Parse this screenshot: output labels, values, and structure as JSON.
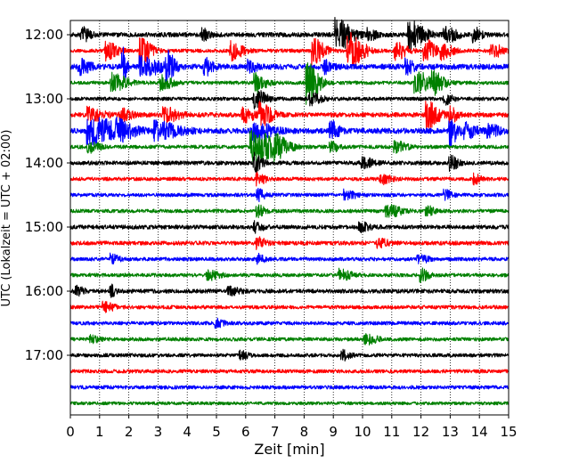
{
  "chart_data": {
    "type": "line",
    "title": "",
    "xlabel": "Zeit  [min]",
    "ylabel": "UTC (Lokalzeit = UTC + 02:00)",
    "xlim": [
      0,
      15
    ],
    "x_ticks": [
      "0",
      "1",
      "2",
      "3",
      "4",
      "5",
      "6",
      "7",
      "8",
      "9",
      "10",
      "11",
      "12",
      "13",
      "14",
      "15"
    ],
    "y_tick_labels": [
      "12:00",
      "13:00",
      "14:00",
      "15:00",
      "16:00",
      "17:00"
    ],
    "grid": "vertical dotted at each minute",
    "trace_colors": [
      "#000000",
      "#ff0000",
      "#0000ff",
      "#008000"
    ],
    "traces": [
      {
        "time": "12:00",
        "color": "#000000",
        "amplitude": 0.5,
        "events": [
          [
            9.1,
            3.5,
            0.4
          ],
          [
            11.6,
            3,
            0.4
          ],
          [
            12.8,
            2,
            0.3
          ],
          [
            0.4,
            1.5,
            0.2
          ],
          [
            4.5,
            1.2,
            0.2
          ],
          [
            10.2,
            1.2,
            0.2
          ],
          [
            13.8,
            1.5,
            0.2
          ]
        ]
      },
      {
        "time": "12:15",
        "color": "#ff0000",
        "amplitude": 0.4,
        "events": [
          [
            1.2,
            2,
            0.3
          ],
          [
            2.4,
            2.5,
            0.3
          ],
          [
            5.5,
            2,
            0.3
          ],
          [
            8.3,
            3,
            0.3
          ],
          [
            9.5,
            4,
            0.4
          ],
          [
            11.1,
            2,
            0.3
          ],
          [
            12.1,
            2.5,
            0.3
          ],
          [
            12.7,
            1.5,
            0.3
          ],
          [
            14.4,
            1.5,
            0.3
          ]
        ]
      },
      {
        "time": "12:30",
        "color": "#0000ff",
        "amplitude": 0.6,
        "events": [
          [
            0.3,
            1.5,
            0.3
          ],
          [
            1.8,
            4,
            0.1
          ],
          [
            2.4,
            2.2,
            0.5
          ],
          [
            3.3,
            3,
            0.2
          ],
          [
            4.6,
            1.8,
            0.2
          ],
          [
            6.1,
            1.2,
            0.2
          ],
          [
            8.7,
            1.2,
            0.2
          ],
          [
            11.5,
            1.5,
            0.2
          ]
        ]
      },
      {
        "time": "12:45",
        "color": "#008000",
        "amplitude": 0.4,
        "events": [
          [
            1.4,
            2,
            0.4
          ],
          [
            3.1,
            1.5,
            0.3
          ],
          [
            6.3,
            2,
            0.3
          ],
          [
            8.1,
            4.5,
            0.3
          ],
          [
            11.8,
            2.5,
            0.4
          ],
          [
            12.4,
            2,
            0.3
          ]
        ]
      },
      {
        "time": "13:00",
        "color": "#000000",
        "amplitude": 0.4,
        "events": [
          [
            6.3,
            2,
            0.3
          ],
          [
            8.2,
            1.2,
            0.3
          ],
          [
            12.8,
            1.2,
            0.2
          ]
        ]
      },
      {
        "time": "13:15",
        "color": "#ff0000",
        "amplitude": 0.5,
        "events": [
          [
            0.6,
            1.5,
            0.4
          ],
          [
            1.7,
            1.2,
            0.3
          ],
          [
            3.2,
            1.5,
            0.4
          ],
          [
            5.9,
            1.5,
            0.3
          ],
          [
            6.5,
            2.5,
            0.3
          ],
          [
            12.2,
            3,
            0.3
          ],
          [
            13.0,
            1.5,
            0.2
          ]
        ]
      },
      {
        "time": "13:30",
        "color": "#0000ff",
        "amplitude": 0.6,
        "events": [
          [
            0.6,
            3,
            0.8
          ],
          [
            1.6,
            1.5,
            0.4
          ],
          [
            2.9,
            1.8,
            0.6
          ],
          [
            6.2,
            2,
            0.5
          ],
          [
            8.9,
            2,
            0.2
          ],
          [
            13.0,
            3,
            0.2
          ],
          [
            13.5,
            1.5,
            0.3
          ],
          [
            14.3,
            1.2,
            0.3
          ]
        ]
      },
      {
        "time": "13:45",
        "color": "#008000",
        "amplitude": 0.4,
        "events": [
          [
            0.6,
            1.2,
            0.3
          ],
          [
            6.2,
            3.5,
            0.7
          ],
          [
            7.0,
            1.2,
            0.3
          ],
          [
            8.9,
            1.2,
            0.2
          ],
          [
            11.1,
            1.2,
            0.3
          ]
        ]
      },
      {
        "time": "14:00",
        "color": "#000000",
        "amplitude": 0.45,
        "events": [
          [
            6.3,
            2,
            0.2
          ],
          [
            10.0,
            1,
            0.3
          ],
          [
            13.0,
            1.5,
            0.2
          ]
        ]
      },
      {
        "time": "14:15",
        "color": "#ff0000",
        "amplitude": 0.4,
        "events": [
          [
            6.4,
            1.5,
            0.2
          ],
          [
            10.6,
            1,
            0.3
          ],
          [
            13.8,
            1,
            0.2
          ]
        ]
      },
      {
        "time": "14:30",
        "color": "#0000ff",
        "amplitude": 0.4,
        "events": [
          [
            6.4,
            1.2,
            0.2
          ],
          [
            9.4,
            1,
            0.3
          ],
          [
            12.8,
            1,
            0.2
          ]
        ]
      },
      {
        "time": "14:45",
        "color": "#008000",
        "amplitude": 0.4,
        "events": [
          [
            6.4,
            1.2,
            0.2
          ],
          [
            10.8,
            1.3,
            0.4
          ],
          [
            12.2,
            1,
            0.2
          ]
        ]
      },
      {
        "time": "15:00",
        "color": "#000000",
        "amplitude": 0.45,
        "events": [
          [
            6.3,
            1.2,
            0.2
          ],
          [
            9.9,
            0.9,
            0.3
          ]
        ]
      },
      {
        "time": "15:15",
        "color": "#ff0000",
        "amplitude": 0.45,
        "events": [
          [
            6.4,
            1.2,
            0.2
          ],
          [
            10.5,
            0.9,
            0.3
          ]
        ]
      },
      {
        "time": "15:30",
        "color": "#0000ff",
        "amplitude": 0.4,
        "events": [
          [
            1.4,
            1,
            0.2
          ],
          [
            6.4,
            1,
            0.2
          ],
          [
            11.9,
            0.8,
            0.3
          ]
        ]
      },
      {
        "time": "15:45",
        "color": "#008000",
        "amplitude": 0.4,
        "events": [
          [
            4.7,
            1,
            0.3
          ],
          [
            9.2,
            1.2,
            0.3
          ],
          [
            12.0,
            1.3,
            0.2
          ]
        ]
      },
      {
        "time": "16:00",
        "color": "#000000",
        "amplitude": 0.45,
        "events": [
          [
            0.2,
            1,
            0.2
          ],
          [
            1.4,
            1.2,
            0.1
          ],
          [
            5.4,
            0.8,
            0.3
          ]
        ]
      },
      {
        "time": "16:15",
        "color": "#ff0000",
        "amplitude": 0.4,
        "events": [
          [
            1.1,
            1,
            0.3
          ]
        ]
      },
      {
        "time": "16:30",
        "color": "#0000ff",
        "amplitude": 0.4,
        "events": [
          [
            5.0,
            0.8,
            0.2
          ]
        ]
      },
      {
        "time": "16:45",
        "color": "#008000",
        "amplitude": 0.4,
        "events": [
          [
            0.7,
            0.8,
            0.2
          ],
          [
            10.1,
            1,
            0.3
          ]
        ]
      },
      {
        "time": "17:00",
        "color": "#000000",
        "amplitude": 0.4,
        "events": [
          [
            5.8,
            0.9,
            0.2
          ],
          [
            9.3,
            1,
            0.2
          ]
        ]
      },
      {
        "time": "17:15",
        "color": "#ff0000",
        "amplitude": 0.4,
        "events": []
      },
      {
        "time": "17:30",
        "color": "#0000ff",
        "amplitude": 0.4,
        "events": []
      },
      {
        "time": "17:45",
        "color": "#008000",
        "amplitude": 0.35,
        "events": []
      }
    ]
  }
}
